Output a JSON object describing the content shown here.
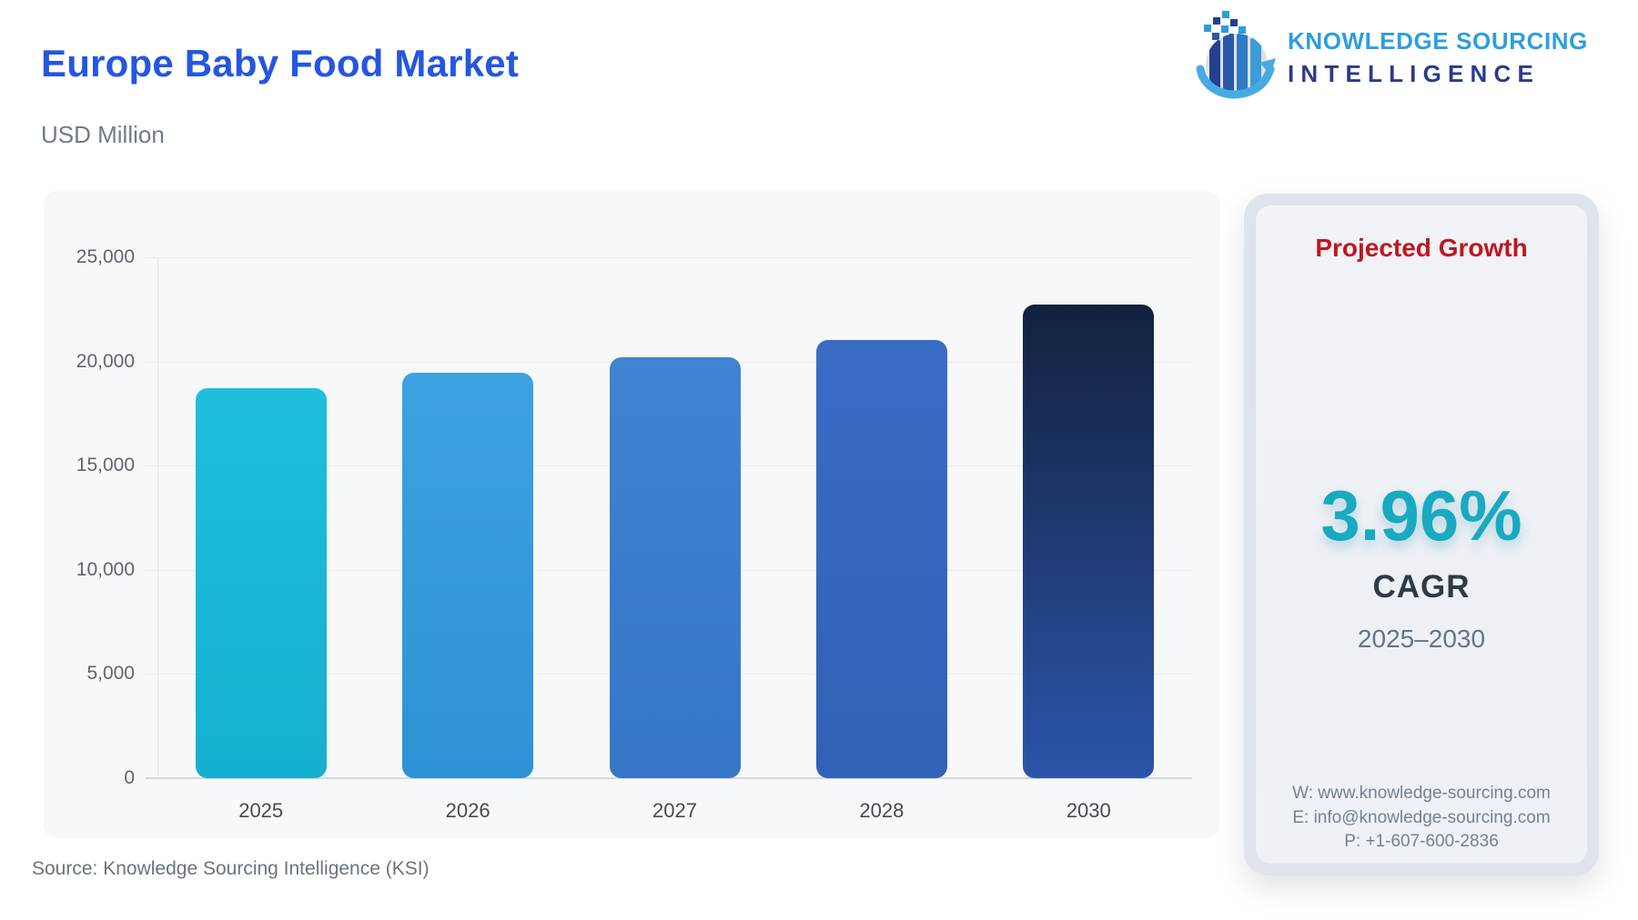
{
  "header": {
    "title": "Europe Baby Food Market",
    "subtitle": "USD Million"
  },
  "logo": {
    "line1": "KNOWLEDGE SOURCING",
    "line2": "INTELLIGENCE"
  },
  "chart_data": {
    "type": "bar",
    "title": "Europe Baby Food Market",
    "unit": "USD Million",
    "categories": [
      "2025",
      "2026",
      "2027",
      "2028",
      "2030"
    ],
    "values": [
      18700,
      19440,
      20210,
      21010,
      22710
    ],
    "ylim": [
      0,
      25000
    ],
    "yticks": [
      0,
      5000,
      10000,
      15000,
      20000,
      25000
    ],
    "ytick_labels": [
      "0",
      "5,000",
      "10,000",
      "15,000",
      "20,000",
      "25,000"
    ],
    "grid": true,
    "legend": false,
    "bar_gradients": [
      [
        "#1EBEDD",
        "#15B0CF"
      ],
      [
        "#3DA2E2",
        "#2E92D5"
      ],
      [
        "#4083D2",
        "#3577C6"
      ],
      [
        "#3A6CC6",
        "#3162B5"
      ],
      [
        "#12213E",
        "#2B55AA"
      ]
    ]
  },
  "panel": {
    "title": "Projected Growth",
    "cagr_value": "3.96%",
    "cagr_label": "CAGR",
    "period": "2025–2030",
    "contacts": {
      "website": "W: www.knowledge-sourcing.com",
      "email": "E: info@knowledge-sourcing.com",
      "phone": "P: +1-607-600-2836"
    }
  },
  "footer": {
    "source": "Source: Knowledge Sourcing Intelligence (KSI)"
  },
  "colors": {
    "title_blue": "#2456E0",
    "subtitle_gray": "#6F7B87",
    "logo_light_blue": "#2E9EDC",
    "logo_dark_blue": "#2B3990",
    "card_bg": "#F7F8FA",
    "panel_title_red": "#C0161F",
    "cagr_teal": "#19A9C0",
    "period_gray": "#64748B",
    "contact_gray": "#74828F"
  }
}
